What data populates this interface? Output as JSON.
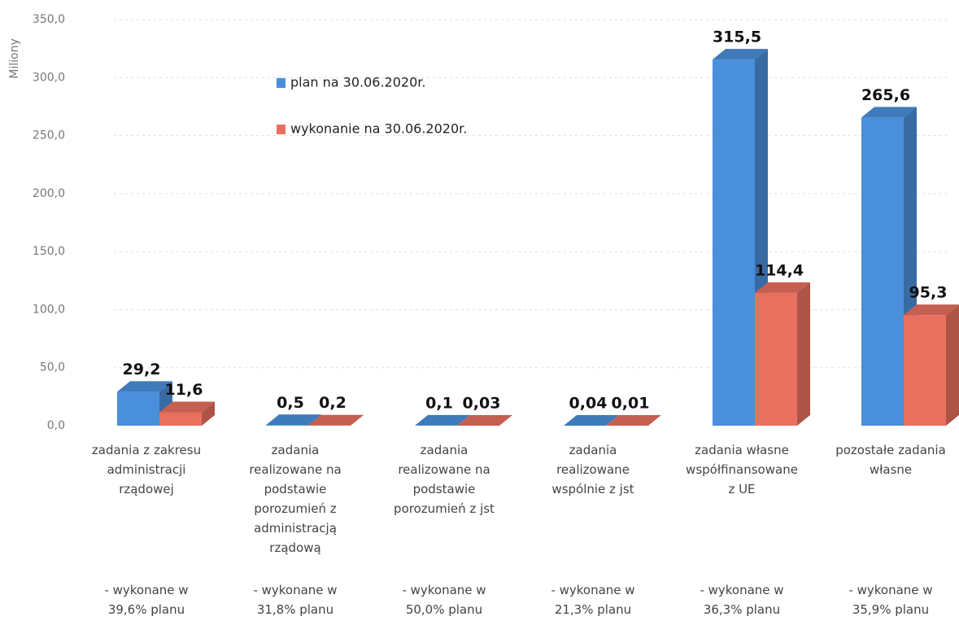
{
  "chart_data": {
    "type": "bar3d",
    "y_axis_label": "Miliony",
    "categories": [
      "zadania z zakresu administracji rządowej",
      "zadania realizowane na podstawie porozumień z administracją rządową",
      "zadania realizowane na podstawie porozumień z jst",
      "zadania realizowane wspólnie z jst",
      "zadania własne współfinansowane z UE",
      "pozostałe zadania własne"
    ],
    "notes": [
      "- wykonane w 39,6% planu",
      "- wykonane w 31,8% planu",
      "- wykonane w 50,0% planu",
      "- wykonane w 21,3% planu",
      "- wykonane w 36,3% planu",
      "- wykonane w 35,9% planu"
    ],
    "series": [
      {
        "name": "plan na 30.06.2020r.",
        "color": "#4a8fdb",
        "values": [
          29.2,
          0.5,
          0.1,
          0.04,
          315.5,
          265.6
        ],
        "value_labels": [
          "29,2",
          "0,5",
          "0,1",
          "0,04",
          "315,5",
          "265,6"
        ]
      },
      {
        "name": "wykonanie na 30.06.2020r.",
        "color": "#e8705f",
        "values": [
          11.6,
          0.2,
          0.03,
          0.01,
          114.4,
          95.3
        ],
        "value_labels": [
          "11,6",
          "0,2",
          "0,03",
          "0,01",
          "114,4",
          "95,3"
        ]
      }
    ],
    "ylim": [
      0,
      350
    ],
    "yticks": [
      {
        "value": 0,
        "label": "0,0"
      },
      {
        "value": 50,
        "label": "50,0"
      },
      {
        "value": 100,
        "label": "100,0"
      },
      {
        "value": 150,
        "label": "150,0"
      },
      {
        "value": 200,
        "label": "200,0"
      },
      {
        "value": 250,
        "label": "250,0"
      },
      {
        "value": 300,
        "label": "300,0"
      },
      {
        "value": 350,
        "label": "350,0"
      }
    ],
    "grid": true
  }
}
